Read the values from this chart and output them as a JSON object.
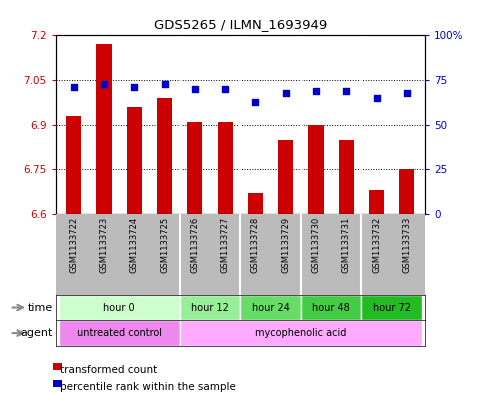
{
  "title": "GDS5265 / ILMN_1693949",
  "samples": [
    "GSM1133722",
    "GSM1133723",
    "GSM1133724",
    "GSM1133725",
    "GSM1133726",
    "GSM1133727",
    "GSM1133728",
    "GSM1133729",
    "GSM1133730",
    "GSM1133731",
    "GSM1133732",
    "GSM1133733"
  ],
  "bar_values": [
    6.93,
    7.17,
    6.96,
    6.99,
    6.91,
    6.91,
    6.67,
    6.85,
    6.9,
    6.85,
    6.68,
    6.75
  ],
  "scatter_values": [
    71,
    73,
    71,
    73,
    70,
    70,
    63,
    68,
    69,
    69,
    65,
    68
  ],
  "bar_bottom": 6.6,
  "ylim_left": [
    6.6,
    7.2
  ],
  "ylim_right": [
    0,
    100
  ],
  "yticks_left": [
    6.6,
    6.75,
    6.9,
    7.05,
    7.2
  ],
  "yticks_right": [
    0,
    25,
    50,
    75,
    100
  ],
  "ytick_labels_left": [
    "6.6",
    "6.75",
    "6.9",
    "7.05",
    "7.2"
  ],
  "ytick_labels_right": [
    "0",
    "25",
    "50",
    "75",
    "100%"
  ],
  "bar_color": "#cc0000",
  "scatter_color": "#0000cc",
  "plot_bg": "#ffffff",
  "time_group_colors": [
    "#ccffcc",
    "#99ee99",
    "#66dd66",
    "#44cc44",
    "#22bb22"
  ],
  "time_groups": [
    {
      "label": "hour 0",
      "start": 0,
      "end": 3
    },
    {
      "label": "hour 12",
      "start": 4,
      "end": 5
    },
    {
      "label": "hour 24",
      "start": 6,
      "end": 7
    },
    {
      "label": "hour 48",
      "start": 8,
      "end": 9
    },
    {
      "label": "hour 72",
      "start": 10,
      "end": 11
    }
  ],
  "agent_groups": [
    {
      "label": "untreated control",
      "start": 0,
      "end": 3,
      "color": "#ee88ee"
    },
    {
      "label": "mycophenolic acid",
      "start": 4,
      "end": 11,
      "color": "#ffaaff"
    }
  ],
  "dividers": [
    3.5,
    5.5,
    7.5,
    9.5
  ],
  "time_label": "time",
  "agent_label": "agent",
  "legend_bar": "transformed count",
  "legend_scatter": "percentile rank within the sample",
  "sample_bg": "#bbbbbb",
  "figsize": [
    4.83,
    3.93
  ],
  "dpi": 100
}
